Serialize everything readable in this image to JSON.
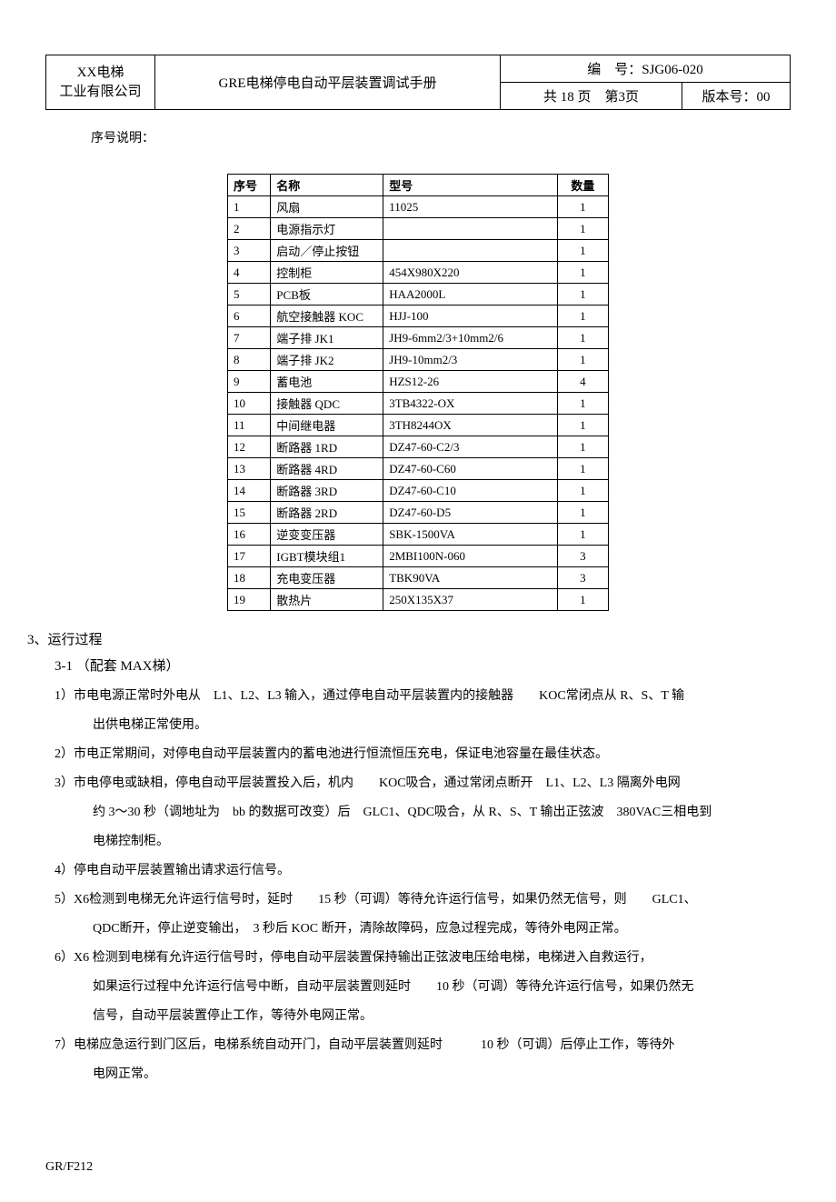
{
  "header": {
    "company_line1": "XX电梯",
    "company_line2": "工业有限公司",
    "title": "GRE电梯停电自动平层装置调试手册",
    "doc_no_label": "编　号：SJG06-020",
    "page_info": "共 18 页　第3页",
    "version_label": "版本号：",
    "version_value": "00"
  },
  "serial_desc": "序号说明：",
  "parts": {
    "columns": [
      "序号",
      "名称",
      "型号",
      "数量"
    ],
    "rows": [
      [
        "1",
        "风扇",
        "11025",
        "1"
      ],
      [
        "2",
        "电源指示灯",
        "",
        "1"
      ],
      [
        "3",
        "启动／停止按钮",
        "",
        "1"
      ],
      [
        "4",
        "控制柜",
        "454X980X220",
        "1"
      ],
      [
        "5",
        "PCB板",
        "HAA2000L",
        "1"
      ],
      [
        "6",
        "航空接触器 KOC",
        "HJJ-100",
        "1"
      ],
      [
        "7",
        "端子排 JK1",
        "JH9-6mm2/3+10mm2/6",
        "1"
      ],
      [
        "8",
        "端子排 JK2",
        "JH9-10mm2/3",
        "1"
      ],
      [
        "9",
        "蓄电池",
        "HZS12-26",
        "4"
      ],
      [
        "10",
        "接触器 QDC",
        "3TB4322-OX",
        "1"
      ],
      [
        "11",
        "中间继电器",
        "3TH8244OX",
        "1"
      ],
      [
        "12",
        "断路器 1RD",
        "DZ47-60-C2/3",
        "1"
      ],
      [
        "13",
        "断路器 4RD",
        "DZ47-60-C60",
        "1"
      ],
      [
        "14",
        "断路器 3RD",
        "DZ47-60-C10",
        "1"
      ],
      [
        "15",
        "断路器 2RD",
        "DZ47-60-D5",
        "1"
      ],
      [
        "16",
        "逆变变压器",
        "SBK-1500VA",
        "1"
      ],
      [
        "17",
        "IGBT模块组1",
        "2MBI100N-060",
        "3"
      ],
      [
        "18",
        "充电变压器",
        "TBK90VA",
        "3"
      ],
      [
        "19",
        "散热片",
        "250X135X37",
        "1"
      ]
    ]
  },
  "section3": {
    "heading": "3、运行过程",
    "subheading": "3-1 （配套 MAX梯）",
    "p1": "1）市电电源正常时外电从　L1、L2、L3 输入，通过停电自动平层装置内的接触器　　KOC常闭点从 R、S、T 输",
    "p1b": "出供电梯正常使用。",
    "p2": "2）市电正常期间，对停电自动平层装置内的蓄电池进行恒流恒压充电，保证电池容量在最佳状态。",
    "p3": "3）市电停电或缺相，停电自动平层装置投入后，机内　　KOC吸合，通过常闭点断开　L1、L2、L3 隔离外电网",
    "p3b": "约 3～30 秒（调地址为　bb 的数据可改变）后　GLC1、QDC吸合，从 R、S、T 输出正弦波　380VAC三相电到",
    "p3c": "电梯控制柜。",
    "p4": "4）停电自动平层装置输出请求运行信号。",
    "p5": "5）X6检测到电梯无允许运行信号时，延时　　15 秒（可调）等待允许运行信号，如果仍然无信号，则　　GLC1、",
    "p5b": "QDC断开，停止逆变输出，　3 秒后 KOC 断开，清除故障码，应急过程完成，等待外电网正常。",
    "p6": "6）X6 检测到电梯有允许运行信号时，停电自动平层装置保持输出正弦波电压给电梯，电梯进入自救运行，",
    "p6b": "如果运行过程中允许运行信号中断，自动平层装置则延时　　10 秒（可调）等待允许运行信号，如果仍然无",
    "p6c": "信号，自动平层装置停止工作，等待外电网正常。",
    "p7": "7）电梯应急运行到门区后，电梯系统自动开门，自动平层装置则延时　　　10 秒（可调）后停止工作，等待外",
    "p7b": "电网正常。"
  },
  "footer": "GR/F212"
}
